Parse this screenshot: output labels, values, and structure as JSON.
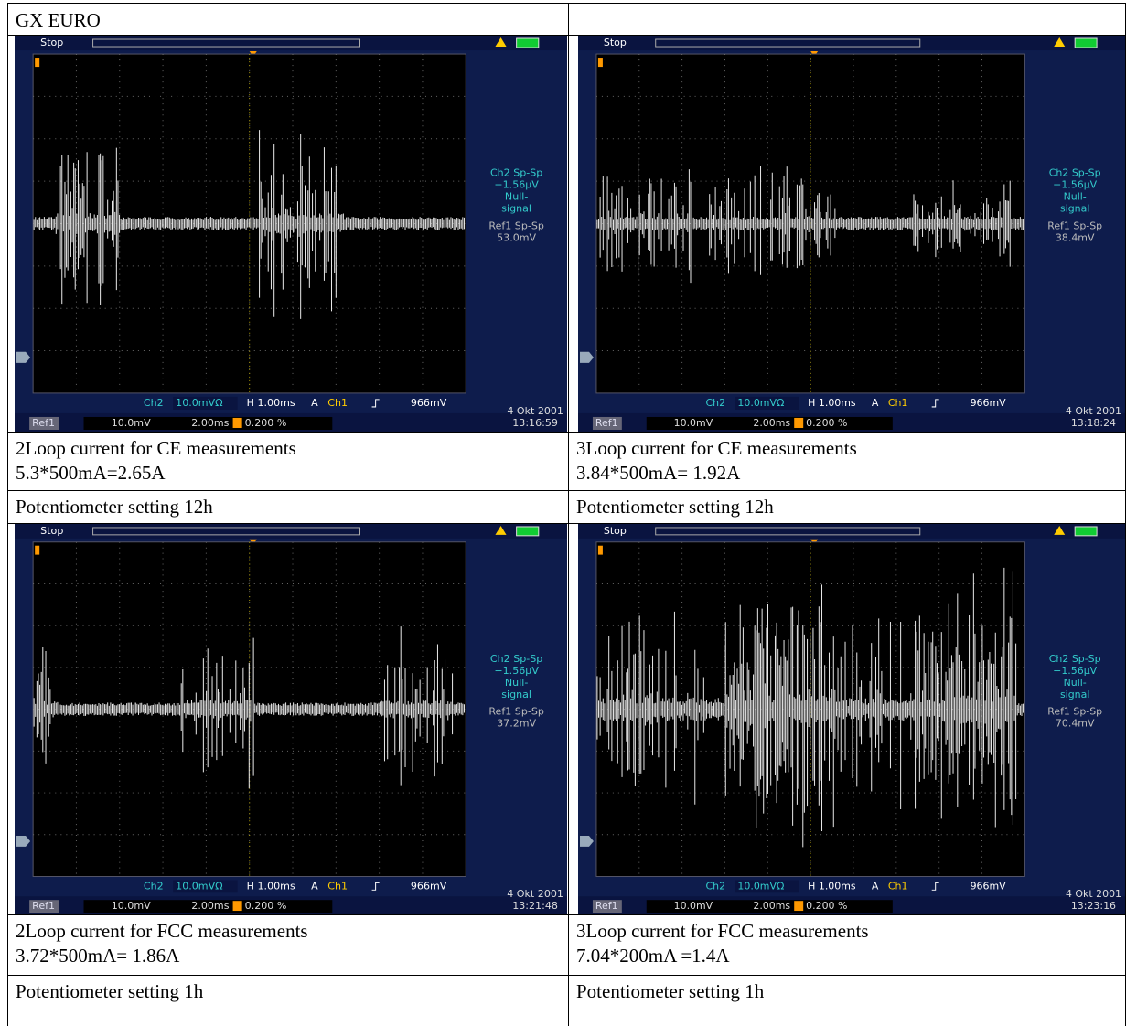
{
  "header": {
    "title": "GX EURO"
  },
  "scopes": [
    {
      "status": "Stop",
      "measure": [
        "Ch2 Sp-Sp",
        "−1.56µV",
        "Null-",
        "signal",
        "Ref1 Sp-Sp",
        "53.0mV"
      ],
      "readout": {
        "channel": "Ch2",
        "scale": "10.0mVΩ",
        "time": "H 1.00ms",
        "mode": "A",
        "trigger": "Ch1",
        "level": "966mV"
      },
      "reference": {
        "label": "Ref1",
        "scale": "10.0mV",
        "time": "2.00ms",
        "position": "0.200 %"
      },
      "date": "4 Okt 2001",
      "clock": "13:16:59"
    },
    {
      "status": "Stop",
      "measure": [
        "Ch2 Sp-Sp",
        "−1.56µV",
        "Null-",
        "signal",
        "Ref1 Sp-Sp",
        "38.4mV"
      ],
      "readout": {
        "channel": "Ch2",
        "scale": "10.0mVΩ",
        "time": "H 1.00ms",
        "mode": "A",
        "trigger": "Ch1",
        "level": "966mV"
      },
      "reference": {
        "label": "Ref1",
        "scale": "10.0mV",
        "time": "2.00ms",
        "position": "0.200 %"
      },
      "date": "4 Okt 2001",
      "clock": "13:18:24"
    },
    {
      "status": "Stop",
      "measure": [
        "Ch2 Sp-Sp",
        "−1.56µV",
        "Null-",
        "signal",
        "Ref1 Sp-Sp",
        "37.2mV"
      ],
      "readout": {
        "channel": "Ch2",
        "scale": "10.0mVΩ",
        "time": "H 1.00ms",
        "mode": "A",
        "trigger": "Ch1",
        "level": "966mV"
      },
      "reference": {
        "label": "Ref1",
        "scale": "10.0mV",
        "time": "2.00ms",
        "position": "0.200 %"
      },
      "date": "4 Okt 2001",
      "clock": "13:21:48"
    },
    {
      "status": "Stop",
      "measure": [
        "Ch2 Sp-Sp",
        "−1.56µV",
        "Null-",
        "signal",
        "Ref1 Sp-Sp",
        "70.4mV"
      ],
      "readout": {
        "channel": "Ch2",
        "scale": "10.0mVΩ",
        "time": "H 1.00ms",
        "mode": "A",
        "trigger": "Ch1",
        "level": "966mV"
      },
      "reference": {
        "label": "Ref1",
        "scale": "10.0mV",
        "time": "2.00ms",
        "position": "0.200 %"
      },
      "date": "4 Okt 2001",
      "clock": "13:23:16"
    }
  ],
  "captions": [
    {
      "lines": [
        "2Loop current for CE measurements",
        "5.3*500mA=2.65A"
      ],
      "setting": "Potentiometer setting 12h"
    },
    {
      "lines": [
        "3Loop current for CE measurements",
        "3.84*500mA= 1.92A"
      ],
      "setting": "Potentiometer setting 12h"
    },
    {
      "lines": [
        "2Loop current for FCC measurements",
        "3.72*500mA= 1.86A"
      ],
      "setting": "Potentiometer setting 1h"
    },
    {
      "lines": [
        "3Loop current for FCC measurements",
        "7.04*200mA =1.4A"
      ],
      "setting": "Potentiometer setting 1h"
    }
  ]
}
